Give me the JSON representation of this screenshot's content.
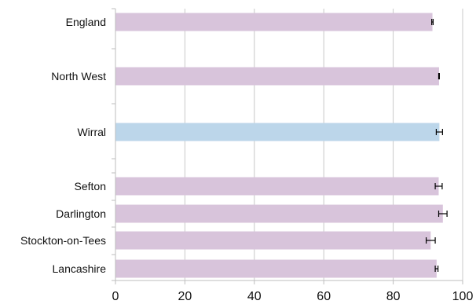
{
  "chart_data": {
    "type": "bar",
    "orientation": "horizontal",
    "title": "",
    "xlabel": "",
    "ylabel": "",
    "xlim": [
      0,
      100
    ],
    "grid": "vertical gridlines at major ticks",
    "x_ticks": [
      "0",
      "20",
      "40",
      "60",
      "80",
      "100"
    ],
    "categories": [
      "England",
      "North West",
      "Wirral",
      "Sefton",
      "Darlington",
      "Stockton-on-Tees",
      "Lancashire"
    ],
    "values": [
      91.3,
      93.2,
      93.3,
      93.1,
      94.3,
      90.8,
      92.5
    ],
    "error_low": [
      91.1,
      93.1,
      92.4,
      92.1,
      93.1,
      89.5,
      92.1
    ],
    "error_high": [
      91.5,
      93.3,
      94.2,
      94.1,
      95.5,
      92.1,
      92.9
    ],
    "colors": {
      "comparator": "#d8c4db",
      "highlight": "#bcd6ea",
      "axis": "#bdbdbd",
      "errorbar": "#000000"
    },
    "highlighted_category": "Wirral"
  }
}
